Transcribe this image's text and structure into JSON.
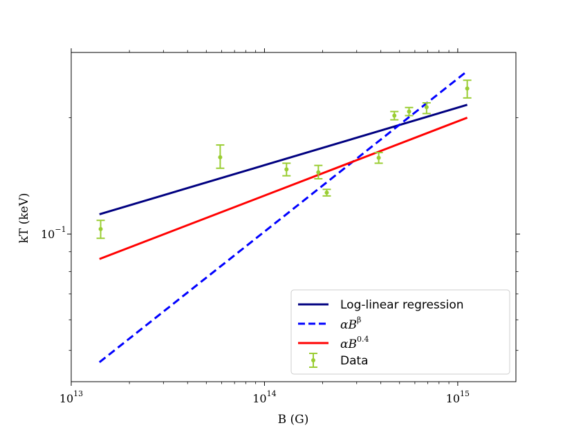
{
  "chart_data": {
    "type": "line",
    "title": "",
    "xlabel": "B (G)",
    "ylabel": "kT (keV)",
    "xscale": "log",
    "yscale": "log",
    "xlim": [
      10000000000000.0,
      2000000000000000.0
    ],
    "ylim": [
      0.0415,
      0.295
    ],
    "x_ticks": [
      {
        "value": 10000000000000.0,
        "base": "10",
        "exp": "13"
      },
      {
        "value": 100000000000000.0,
        "base": "10",
        "exp": "14"
      },
      {
        "value": 1000000000000000.0,
        "base": "10",
        "exp": "15"
      }
    ],
    "y_ticks": [
      {
        "value": 0.1,
        "base": "10",
        "exp": "−1"
      }
    ],
    "series": [
      {
        "name": "Log-linear regression",
        "style": "solid",
        "color": "#000080",
        "x": [
          14000000000000.0,
          1120000000000000.0
        ],
        "y": [
          0.1125,
          0.216
        ]
      },
      {
        "name": "αB^β",
        "style": "dashed",
        "color": "#0000ff",
        "x": [
          14000000000000.0,
          1120000000000000.0
        ],
        "y": [
          0.0466,
          0.264
        ]
      },
      {
        "name": "αB^0.4",
        "style": "solid",
        "color": "#ff0000",
        "x": [
          14000000000000.0,
          1120000000000000.0
        ],
        "y": [
          0.0862,
          0.2
        ]
      },
      {
        "name": "Data",
        "style": "errorbar",
        "color": "#9acd32",
        "points": [
          {
            "x": 14200000000000.0,
            "y": 0.103,
            "lo": 0.0975,
            "hi": 0.1085
          },
          {
            "x": 59000000000000.0,
            "y": 0.158,
            "lo": 0.148,
            "hi": 0.17
          },
          {
            "x": 130000000000000.0,
            "y": 0.147,
            "lo": 0.1415,
            "hi": 0.1525
          },
          {
            "x": 190000000000000.0,
            "y": 0.1445,
            "lo": 0.139,
            "hi": 0.1505
          },
          {
            "x": 210000000000000.0,
            "y": 0.128,
            "lo": 0.1255,
            "hi": 0.1305
          },
          {
            "x": 390000000000000.0,
            "y": 0.1575,
            "lo": 0.1525,
            "hi": 0.1625
          },
          {
            "x": 470000000000000.0,
            "y": 0.2025,
            "lo": 0.1975,
            "hi": 0.2075
          },
          {
            "x": 560000000000000.0,
            "y": 0.2075,
            "lo": 0.2025,
            "hi": 0.2125
          },
          {
            "x": 690000000000000.0,
            "y": 0.213,
            "lo": 0.205,
            "hi": 0.2185
          },
          {
            "x": 1120000000000000.0,
            "y": 0.238,
            "lo": 0.225,
            "hi": 0.25
          }
        ]
      }
    ],
    "legend": {
      "placement": "lower-right",
      "entries": [
        {
          "series": "Log-linear regression",
          "label": "Log-linear regression"
        },
        {
          "series": "αB^β",
          "label": "αB",
          "sup": "β"
        },
        {
          "series": "αB^0.4",
          "label": "αB",
          "sup": "0.4"
        },
        {
          "series": "Data",
          "label": "Data"
        }
      ]
    }
  }
}
